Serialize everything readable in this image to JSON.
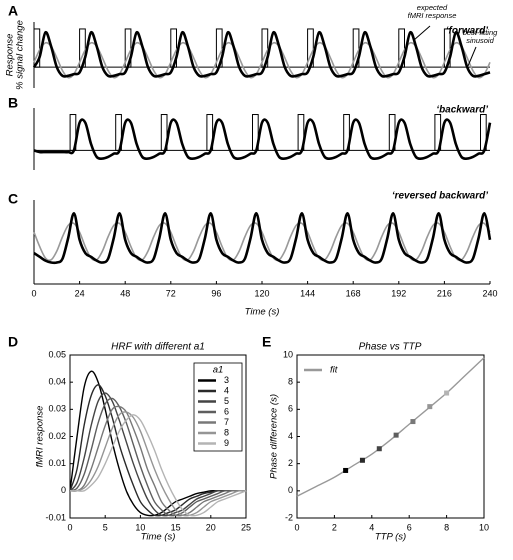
{
  "chart_data": [
    {
      "type": "line",
      "panel": "A",
      "title": "‘forward’",
      "ylabel": [
        "Response",
        "% signal change"
      ],
      "annotations": [
        {
          "lines": [
            "expected",
            "fMRI response"
          ]
        },
        {
          "lines": [
            "best-fitting",
            "sinusoid"
          ]
        }
      ],
      "xlim": [
        0,
        240
      ],
      "ylim": [
        -0.6,
        1.3
      ],
      "zero_line": true,
      "stimulus_onsets": [
        0,
        24,
        48,
        72,
        96,
        120,
        144,
        168,
        192,
        216
      ],
      "stimulus_duration": 3,
      "stimulus_height": 1.1,
      "x": [
        0,
        3,
        6,
        9,
        12,
        15,
        18,
        21,
        24,
        27,
        30,
        33,
        36,
        39,
        42,
        45,
        48,
        51,
        54,
        57,
        60,
        63,
        66,
        69,
        72,
        75,
        78,
        81,
        84,
        87,
        90,
        93,
        96,
        99,
        102,
        105,
        108,
        111,
        114,
        117,
        120,
        123,
        126,
        129,
        132,
        135,
        138,
        141,
        144,
        147,
        150,
        153,
        156,
        159,
        162,
        165,
        168,
        171,
        174,
        177,
        180,
        183,
        186,
        189,
        192,
        195,
        198,
        201,
        204,
        207,
        210,
        213,
        216,
        219,
        222,
        225,
        228,
        231,
        234,
        237,
        240
      ],
      "series": [
        {
          "color": "#999999",
          "values": [
            0.14,
            0.5,
            0.7,
            0.6,
            0.27,
            -0.1,
            -0.3,
            -0.2,
            0.14,
            0.5,
            0.7,
            0.6,
            0.27,
            -0.1,
            -0.3,
            -0.2,
            0.14,
            0.5,
            0.7,
            0.6,
            0.27,
            -0.1,
            -0.3,
            -0.2,
            0.14,
            0.5,
            0.7,
            0.6,
            0.27,
            -0.1,
            -0.3,
            -0.2,
            0.14,
            0.5,
            0.7,
            0.6,
            0.27,
            -0.1,
            -0.3,
            -0.2,
            0.14,
            0.5,
            0.7,
            0.6,
            0.27,
            -0.1,
            -0.3,
            -0.2,
            0.14,
            0.5,
            0.7,
            0.6,
            0.27,
            -0.1,
            -0.3,
            -0.2,
            0.14,
            0.5,
            0.7,
            0.6,
            0.27,
            -0.1,
            -0.3,
            -0.2,
            0.14,
            0.5,
            0.7,
            0.6,
            0.27,
            -0.1,
            -0.3,
            -0.2,
            0.14,
            0.5,
            0.7,
            0.6,
            0.27,
            -0.1,
            -0.3,
            -0.2,
            0.14
          ]
        },
        {
          "color": "#000000",
          "values": [
            0,
            0.3,
            1,
            0.6,
            0,
            -0.25,
            -0.25,
            -0.2,
            -0.15,
            0.3,
            1,
            0.6,
            0,
            -0.25,
            -0.25,
            -0.2,
            -0.15,
            0.3,
            1,
            0.6,
            0,
            -0.25,
            -0.25,
            -0.2,
            -0.15,
            0.3,
            1,
            0.6,
            0,
            -0.25,
            -0.25,
            -0.2,
            -0.15,
            0.3,
            1,
            0.6,
            0,
            -0.25,
            -0.25,
            -0.2,
            -0.15,
            0.3,
            1,
            0.6,
            0,
            -0.25,
            -0.25,
            -0.2,
            -0.15,
            0.3,
            1,
            0.6,
            0,
            -0.25,
            -0.25,
            -0.2,
            -0.15,
            0.3,
            1,
            0.6,
            0,
            -0.25,
            -0.25,
            -0.2,
            -0.15,
            0.3,
            1,
            0.6,
            0,
            -0.25,
            -0.25,
            -0.2,
            -0.15,
            0.3,
            1,
            0.6,
            0,
            -0.25,
            -0.25,
            -0.2,
            -0.15
          ]
        }
      ]
    },
    {
      "type": "line",
      "panel": "B",
      "title": "‘backward’",
      "xlim": [
        0,
        240
      ],
      "ylim": [
        -0.6,
        1.3
      ],
      "zero_line": true,
      "stimulus_onsets": [
        19,
        43,
        67,
        91,
        115,
        139,
        163,
        187,
        211,
        235
      ],
      "stimulus_duration": 3,
      "stimulus_height": 1.1,
      "x": [
        0,
        3,
        6,
        9,
        12,
        15,
        18,
        21,
        24,
        27,
        30,
        33,
        36,
        39,
        42,
        45,
        48,
        51,
        54,
        57,
        60,
        63,
        66,
        69,
        72,
        75,
        78,
        81,
        84,
        87,
        90,
        93,
        96,
        99,
        102,
        105,
        108,
        111,
        114,
        117,
        120,
        123,
        126,
        129,
        132,
        135,
        138,
        141,
        144,
        147,
        150,
        153,
        156,
        159,
        162,
        165,
        168,
        171,
        174,
        177,
        180,
        183,
        186,
        189,
        192,
        195,
        198,
        201,
        204,
        207,
        210,
        213,
        216,
        219,
        222,
        225,
        228,
        231,
        234,
        237,
        240
      ],
      "series": [
        {
          "color": "#000000",
          "values": [
            0,
            -0.05,
            -0.05,
            -0.05,
            -0.05,
            -0.05,
            -0.05,
            0,
            0.85,
            0.85,
            0.2,
            -0.2,
            -0.25,
            -0.2,
            -0.1,
            0,
            0.85,
            0.85,
            0.2,
            -0.2,
            -0.25,
            -0.2,
            -0.1,
            0,
            0.85,
            0.85,
            0.2,
            -0.2,
            -0.25,
            -0.2,
            -0.1,
            0,
            0.85,
            0.85,
            0.2,
            -0.2,
            -0.25,
            -0.2,
            -0.1,
            0,
            0.85,
            0.85,
            0.2,
            -0.2,
            -0.25,
            -0.2,
            -0.1,
            0,
            0.85,
            0.85,
            0.2,
            -0.2,
            -0.25,
            -0.2,
            -0.1,
            0,
            0.85,
            0.85,
            0.2,
            -0.2,
            -0.25,
            -0.2,
            -0.1,
            0,
            0.85,
            0.85,
            0.2,
            -0.2,
            -0.25,
            -0.2,
            -0.1,
            0,
            0.85,
            0.85,
            0.2,
            -0.2,
            -0.25,
            -0.2,
            -0.1,
            0,
            0.85
          ]
        }
      ]
    },
    {
      "type": "line",
      "panel": "C",
      "title": "‘reversed backward’",
      "xlabel": "Time (s)",
      "xlim": [
        0,
        240
      ],
      "ylim": [
        -0.6,
        1.3
      ],
      "xticks": [
        0,
        24,
        48,
        72,
        96,
        120,
        144,
        168,
        192,
        216,
        240
      ],
      "x": [
        0,
        3,
        6,
        9,
        12,
        15,
        18,
        21,
        24,
        27,
        30,
        33,
        36,
        39,
        42,
        45,
        48,
        51,
        54,
        57,
        60,
        63,
        66,
        69,
        72,
        75,
        78,
        81,
        84,
        87,
        90,
        93,
        96,
        99,
        102,
        105,
        108,
        111,
        114,
        117,
        120,
        123,
        126,
        129,
        132,
        135,
        138,
        141,
        144,
        147,
        150,
        153,
        156,
        159,
        162,
        165,
        168,
        171,
        174,
        177,
        180,
        183,
        186,
        189,
        192,
        195,
        198,
        201,
        204,
        207,
        210,
        213,
        216,
        219,
        222,
        225,
        228,
        231,
        234,
        237,
        240
      ],
      "series": [
        {
          "color": "#999999",
          "values": [
            0.45,
            0.07,
            -0.23,
            -0.28,
            -0.05,
            0.33,
            0.63,
            0.68,
            0.45,
            0.07,
            -0.23,
            -0.28,
            -0.05,
            0.33,
            0.63,
            0.68,
            0.45,
            0.07,
            -0.23,
            -0.28,
            -0.05,
            0.33,
            0.63,
            0.68,
            0.45,
            0.07,
            -0.23,
            -0.28,
            -0.05,
            0.33,
            0.63,
            0.68,
            0.45,
            0.07,
            -0.23,
            -0.28,
            -0.05,
            0.33,
            0.63,
            0.68,
            0.45,
            0.07,
            -0.23,
            -0.28,
            -0.05,
            0.33,
            0.63,
            0.68,
            0.45,
            0.07,
            -0.23,
            -0.28,
            -0.05,
            0.33,
            0.63,
            0.68,
            0.45,
            0.07,
            -0.23,
            -0.28,
            -0.05,
            0.33,
            0.63,
            0.68,
            0.45,
            0.07,
            -0.23,
            -0.28,
            -0.05,
            0.33,
            0.63,
            0.68,
            0.45,
            0.07,
            -0.23,
            -0.28,
            -0.05,
            0.33,
            0.63,
            0.68,
            0.45
          ]
        },
        {
          "color": "#000000",
          "values": [
            -0.1,
            -0.2,
            -0.3,
            -0.35,
            -0.35,
            -0.25,
            0.3,
            0.95,
            0.25,
            -0.1,
            -0.2,
            -0.3,
            -0.35,
            -0.25,
            0.3,
            0.95,
            0.25,
            -0.1,
            -0.2,
            -0.3,
            -0.35,
            -0.25,
            0.3,
            0.95,
            0.25,
            -0.1,
            -0.2,
            -0.3,
            -0.35,
            -0.25,
            0.3,
            0.95,
            0.25,
            -0.1,
            -0.2,
            -0.3,
            -0.35,
            -0.25,
            0.3,
            0.95,
            0.25,
            -0.1,
            -0.2,
            -0.3,
            -0.35,
            -0.25,
            0.3,
            0.95,
            0.25,
            -0.1,
            -0.2,
            -0.3,
            -0.35,
            -0.25,
            0.3,
            0.95,
            0.25,
            -0.1,
            -0.2,
            -0.3,
            -0.35,
            -0.25,
            0.3,
            0.95,
            0.25,
            -0.1,
            -0.2,
            -0.3,
            -0.35,
            -0.25,
            0.3,
            0.95,
            0.25,
            -0.1,
            -0.2,
            -0.3,
            -0.35,
            -0.25,
            0.3,
            0.95,
            0.25
          ]
        }
      ]
    },
    {
      "type": "line",
      "panel": "D",
      "title": "HRF with different a1",
      "xlabel": "Time (s)",
      "ylabel": "fMRI response",
      "frame": true,
      "legend": "upper right",
      "legend_title": "a1",
      "legend_frame": true,
      "xlim": [
        0,
        25
      ],
      "ylim": [
        -0.01,
        0.05
      ],
      "xticks": [
        0,
        5,
        10,
        15,
        20,
        25
      ],
      "yticks": [
        -0.01,
        0,
        0.01,
        0.02,
        0.03,
        0.04,
        0.05
      ],
      "x": [
        0,
        1,
        2,
        3,
        4,
        5,
        6,
        7,
        8,
        9,
        10,
        11,
        12,
        13,
        14,
        15,
        16,
        17,
        18,
        19,
        20,
        21,
        22,
        23,
        24,
        25
      ],
      "series": [
        {
          "name": "3",
          "color": "#000000",
          "values": [
            0,
            0.02,
            0.038,
            0.044,
            0.04,
            0.03,
            0.018,
            0.008,
            0,
            -0.005,
            -0.008,
            -0.009,
            -0.009,
            -0.008,
            -0.006,
            -0.004,
            -0.003,
            -0.002,
            -0.001,
            -0.0005,
            0,
            0,
            0,
            0,
            0,
            0
          ]
        },
        {
          "name": "4",
          "color": "#2a2a2a",
          "values": [
            0,
            0.008,
            0.024,
            0.035,
            0.039,
            0.035,
            0.027,
            0.017,
            0.009,
            0.002,
            -0.004,
            -0.007,
            -0.009,
            -0.009,
            -0.008,
            -0.007,
            -0.005,
            -0.003,
            -0.002,
            -0.001,
            -0.0005,
            0,
            0,
            0,
            0,
            0
          ]
        },
        {
          "name": "5",
          "color": "#444444",
          "values": [
            0,
            0.003,
            0.012,
            0.024,
            0.033,
            0.036,
            0.033,
            0.026,
            0.018,
            0.01,
            0.003,
            -0.003,
            -0.007,
            -0.009,
            -0.009,
            -0.008,
            -0.007,
            -0.005,
            -0.003,
            -0.002,
            -0.001,
            0,
            0,
            0,
            0,
            0
          ]
        },
        {
          "name": "6",
          "color": "#5e5e5e",
          "values": [
            0,
            0.001,
            0.006,
            0.015,
            0.025,
            0.032,
            0.034,
            0.031,
            0.025,
            0.017,
            0.009,
            0.002,
            -0.004,
            -0.007,
            -0.009,
            -0.009,
            -0.008,
            -0.006,
            -0.004,
            -0.003,
            -0.002,
            -0.001,
            0,
            0,
            0,
            0
          ]
        },
        {
          "name": "7",
          "color": "#787878",
          "values": [
            0,
            0,
            0.002,
            0.008,
            0.016,
            0.024,
            0.03,
            0.031,
            0.029,
            0.023,
            0.016,
            0.008,
            0.002,
            -0.004,
            -0.007,
            -0.009,
            -0.009,
            -0.008,
            -0.006,
            -0.004,
            -0.003,
            -0.002,
            -0.001,
            0,
            0,
            0
          ]
        },
        {
          "name": "8",
          "color": "#959595",
          "values": [
            0,
            0,
            0.001,
            0.004,
            0.009,
            0.016,
            0.023,
            0.028,
            0.029,
            0.027,
            0.022,
            0.015,
            0.008,
            0.002,
            -0.003,
            -0.007,
            -0.009,
            -0.009,
            -0.008,
            -0.006,
            -0.004,
            -0.003,
            -0.002,
            -0.001,
            0,
            0
          ]
        },
        {
          "name": "9",
          "color": "#b4b4b4",
          "values": [
            0,
            0,
            0,
            0.002,
            0.005,
            0.01,
            0.016,
            0.022,
            0.026,
            0.028,
            0.026,
            0.021,
            0.015,
            0.008,
            0.002,
            -0.003,
            -0.007,
            -0.009,
            -0.009,
            -0.008,
            -0.006,
            -0.004,
            -0.003,
            -0.002,
            -0.001,
            0
          ]
        }
      ]
    },
    {
      "type": "scatter",
      "panel": "E",
      "title": "Phase vs TTP",
      "xlabel": "TTP (s)",
      "ylabel": "Phase difference (s)",
      "frame": true,
      "legend": "upper left",
      "xlim": [
        0,
        10
      ],
      "ylim": [
        -2,
        10
      ],
      "xticks": [
        0,
        2,
        4,
        6,
        8,
        10
      ],
      "yticks": [
        -2,
        0,
        2,
        4,
        6,
        8,
        10
      ],
      "series": [
        {
          "name": "fit",
          "type": "line",
          "color": "#999999",
          "x": [
            0,
            1,
            2,
            3,
            4,
            5,
            6,
            7,
            8,
            9,
            10
          ],
          "values": [
            -0.4,
            0.3,
            1,
            1.85,
            2.7,
            3.75,
            4.9,
            6.05,
            7.2,
            8.5,
            9.8
          ]
        },
        {
          "type": "scatter",
          "colors": [
            "#000000",
            "#2a2a2a",
            "#444444",
            "#5e5e5e",
            "#787878",
            "#959595",
            "#b4b4b4"
          ],
          "x": [
            2.6,
            3.5,
            4.4,
            5.3,
            6.2,
            7.1,
            8
          ],
          "values": [
            1.5,
            2.25,
            3.1,
            4.1,
            5.1,
            6.2,
            7.2
          ]
        }
      ]
    }
  ]
}
